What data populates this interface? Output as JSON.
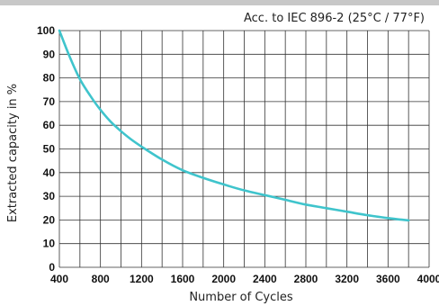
{
  "chart_data": {
    "type": "line",
    "title": "Acc. to IEC 896-2 (25°C / 77°F)",
    "xlabel": "Number of Cycles",
    "ylabel": "Extracted  capacity in %",
    "xlim": [
      400,
      4000
    ],
    "ylim": [
      0,
      100
    ],
    "xticks": [
      400,
      800,
      1200,
      1600,
      2000,
      2400,
      2800,
      3200,
      3600,
      4000
    ],
    "yticks": [
      0,
      10,
      20,
      30,
      40,
      50,
      60,
      70,
      80,
      90,
      100
    ],
    "grid": true,
    "series": [
      {
        "color": "#3fc4cc",
        "x": [
          400,
          500,
          600,
          700,
          800,
          900,
          1000,
          1100,
          1200,
          1400,
          1600,
          1800,
          2000,
          2200,
          2400,
          2600,
          2800,
          3000,
          3200,
          3400,
          3600,
          3800
        ],
        "y": [
          100,
          89,
          79.5,
          72.5,
          66.5,
          61.5,
          57.5,
          54,
          51,
          45.5,
          41,
          37.8,
          35,
          32.5,
          30.5,
          28.5,
          26.5,
          25,
          23.5,
          22,
          20.8,
          19.8
        ]
      }
    ]
  }
}
